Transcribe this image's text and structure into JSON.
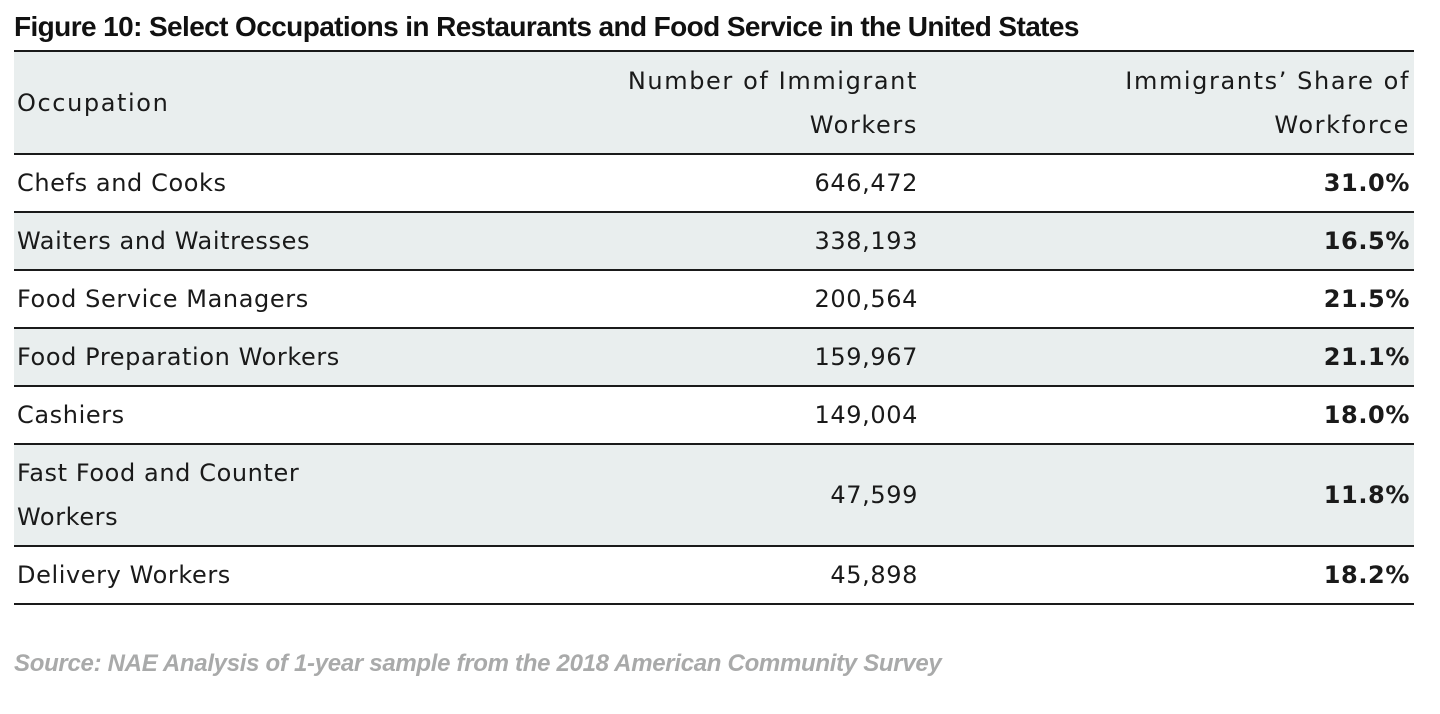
{
  "title": "Figure 10: Select Occupations in Restaurants and Food Service in the United States",
  "table": {
    "headers": {
      "occupation": "Occupation",
      "number_line1": "Number of Immigrant",
      "number_line2": "Workers",
      "share_line1": "Immigrants’ Share of",
      "share_line2": "Workforce"
    },
    "rows": [
      {
        "occupation": "Chefs and Cooks",
        "number": "646,472",
        "share": "31.0%"
      },
      {
        "occupation": "Waiters and Waitresses",
        "number": "338,193",
        "share": "16.5%"
      },
      {
        "occupation": "Food Service Managers",
        "number": "200,564",
        "share": "21.5%"
      },
      {
        "occupation": "Food Preparation Workers",
        "number": "159,967",
        "share": "21.1%"
      },
      {
        "occupation": "Cashiers",
        "number": "149,004",
        "share": "18.0%"
      },
      {
        "occupation_line1": "Fast Food and Counter",
        "occupation_line2": "Workers",
        "number": "47,599",
        "share": "11.8%"
      },
      {
        "occupation": "Delivery Workers",
        "number": "45,898",
        "share": "18.2%"
      }
    ]
  },
  "source": "Source: NAE Analysis of 1-year sample from the 2018 American Community Survey",
  "colors": {
    "header_background": "#e9eeee",
    "row_shade": "#e9eeee",
    "rule": "#1a1a1a",
    "source_text": "#a9aaaa"
  }
}
